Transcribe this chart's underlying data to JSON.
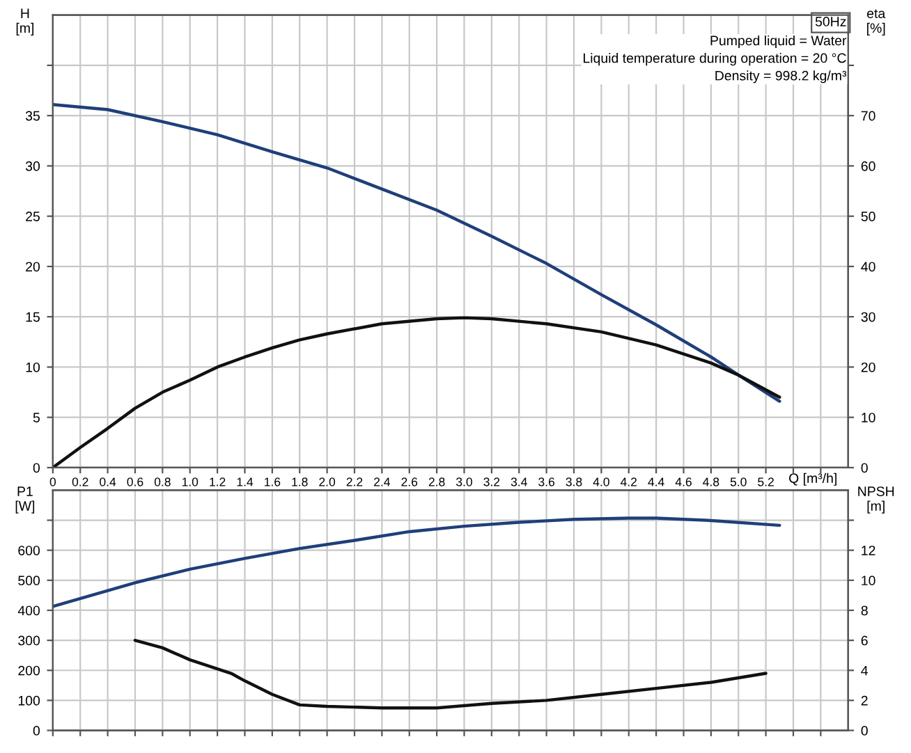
{
  "chart_data": [
    {
      "type": "line",
      "xlabel": "Q [m³/h]",
      "ylabel": "H\n[m]",
      "y2label": "eta\n[%]",
      "annotations": [
        "50Hz",
        "Pumped liquid = Water\nLiquid temperature during operation = 20 °C\nDensity = 998.2 kg/m³"
      ],
      "xlim": [
        0,
        5.8
      ],
      "xticks": [
        {
          "value": 0,
          "label": "0"
        },
        {
          "value": 0.2,
          "label": "0.2"
        },
        {
          "value": 0.4,
          "label": "0.4"
        },
        {
          "value": 0.6,
          "label": "0.6"
        },
        {
          "value": 0.8,
          "label": "0.8"
        },
        {
          "value": 1.0,
          "label": "1.0"
        },
        {
          "value": 1.2,
          "label": "1.2"
        },
        {
          "value": 1.4,
          "label": "1.4"
        },
        {
          "value": 1.6,
          "label": "1.6"
        },
        {
          "value": 1.8,
          "label": "1.8"
        },
        {
          "value": 2.0,
          "label": "2.0"
        },
        {
          "value": 2.2,
          "label": "2.2"
        },
        {
          "value": 2.4,
          "label": "2.4"
        },
        {
          "value": 2.6,
          "label": "2.6"
        },
        {
          "value": 2.8,
          "label": "2.8"
        },
        {
          "value": 3.0,
          "label": "3.0"
        },
        {
          "value": 3.2,
          "label": "3.2"
        },
        {
          "value": 3.4,
          "label": "3.4"
        },
        {
          "value": 3.6,
          "label": "3.6"
        },
        {
          "value": 3.8,
          "label": "3.8"
        },
        {
          "value": 4.0,
          "label": "4.0"
        },
        {
          "value": 4.2,
          "label": "4.2"
        },
        {
          "value": 4.4,
          "label": "4.4"
        },
        {
          "value": 4.6,
          "label": "4.6"
        },
        {
          "value": 4.8,
          "label": "4.8"
        },
        {
          "value": 5.0,
          "label": "5.0"
        },
        {
          "value": 5.2,
          "label": "5.2"
        },
        {
          "value": 5.4,
          "label": null
        },
        {
          "value": 5.6,
          "label": null
        }
      ],
      "ylim": [
        0,
        45
      ],
      "yticks": [
        0,
        5,
        10,
        15,
        20,
        25,
        30,
        35,
        {
          "value": 40,
          "label": null
        }
      ],
      "y2lim": [
        0,
        90
      ],
      "y2ticks": [
        0,
        10,
        20,
        30,
        40,
        50,
        60,
        70,
        {
          "value": 80,
          "label": null
        }
      ],
      "grid": true,
      "legend": false,
      "series": [
        {
          "color": "#1f3f7a",
          "x": [
            0,
            0.4,
            0.8,
            1.2,
            1.6,
            2.0,
            2.4,
            2.8,
            3.2,
            3.6,
            4.0,
            4.4,
            4.8,
            5.0,
            5.3
          ],
          "values": [
            36.1,
            35.6,
            34.4,
            33.1,
            31.4,
            29.8,
            27.7,
            25.6,
            23.0,
            20.3,
            17.2,
            14.2,
            11.0,
            9.2,
            6.6
          ]
        },
        {
          "color": "#111111",
          "axis": "y2",
          "x": [
            0,
            0.2,
            0.4,
            0.6,
            0.8,
            1.0,
            1.2,
            1.4,
            1.6,
            1.8,
            2.0,
            2.4,
            2.8,
            3.0,
            3.2,
            3.6,
            4.0,
            4.4,
            4.8,
            5.0,
            5.3
          ],
          "values": [
            0,
            4,
            7.8,
            11.8,
            15,
            17.4,
            20,
            22,
            23.8,
            25.4,
            26.6,
            28.6,
            29.6,
            29.8,
            29.6,
            28.6,
            27,
            24.4,
            20.8,
            18.4,
            14
          ]
        }
      ]
    },
    {
      "type": "line",
      "ylabel": "P1\n[W]",
      "y2label": "NPSH\n[m]",
      "tick_labels": "y",
      "xlim": [
        0,
        5.8
      ],
      "xticks": [
        {
          "value": 0,
          "label": null
        },
        {
          "value": 0.2,
          "label": null
        },
        {
          "value": 0.4,
          "label": null
        },
        {
          "value": 0.6,
          "label": null
        },
        {
          "value": 0.8,
          "label": null
        },
        {
          "value": 1.0,
          "label": null
        },
        {
          "value": 1.2,
          "label": null
        },
        {
          "value": 1.4,
          "label": null
        },
        {
          "value": 1.6,
          "label": null
        },
        {
          "value": 1.8,
          "label": null
        },
        {
          "value": 2.0,
          "label": null
        },
        {
          "value": 2.2,
          "label": null
        },
        {
          "value": 2.4,
          "label": null
        },
        {
          "value": 2.6,
          "label": null
        },
        {
          "value": 2.8,
          "label": null
        },
        {
          "value": 3.0,
          "label": null
        },
        {
          "value": 3.2,
          "label": null
        },
        {
          "value": 3.4,
          "label": null
        },
        {
          "value": 3.6,
          "label": null
        },
        {
          "value": 3.8,
          "label": null
        },
        {
          "value": 4.0,
          "label": null
        },
        {
          "value": 4.2,
          "label": null
        },
        {
          "value": 4.4,
          "label": null
        },
        {
          "value": 4.6,
          "label": null
        },
        {
          "value": 4.8,
          "label": null
        },
        {
          "value": 5.0,
          "label": null
        },
        {
          "value": 5.2,
          "label": null
        },
        {
          "value": 5.4,
          "label": null
        },
        {
          "value": 5.6,
          "label": null
        }
      ],
      "ylim": [
        0,
        800
      ],
      "yticks": [
        0,
        100,
        200,
        300,
        400,
        500,
        600,
        {
          "value": 700,
          "label": null
        }
      ],
      "y2lim": [
        0,
        16
      ],
      "y2ticks": [
        0,
        2,
        4,
        6,
        8,
        10,
        12,
        {
          "value": 14,
          "label": null
        }
      ],
      "grid": true,
      "legend": false,
      "series": [
        {
          "color": "#1f3f7a",
          "x": [
            0,
            0.6,
            1.0,
            1.4,
            1.8,
            2.2,
            2.6,
            3.0,
            3.4,
            3.8,
            4.2,
            4.4,
            4.8,
            5.3
          ],
          "values": [
            413,
            492,
            537,
            573,
            606,
            633,
            662,
            680,
            693,
            703,
            707,
            707,
            699,
            683
          ]
        },
        {
          "color": "#111111",
          "axis": "y2",
          "x": [
            0.6,
            0.8,
            1.0,
            1.2,
            1.3,
            1.4,
            1.6,
            1.8,
            2.0,
            2.4,
            2.8,
            3.2,
            3.6,
            4.0,
            4.4,
            4.8,
            5.2
          ],
          "values": [
            6.0,
            5.5,
            4.7,
            4.1,
            3.8,
            3.3,
            2.4,
            1.7,
            1.6,
            1.5,
            1.5,
            1.8,
            2.0,
            2.4,
            2.8,
            3.2,
            3.8
          ]
        }
      ]
    }
  ]
}
